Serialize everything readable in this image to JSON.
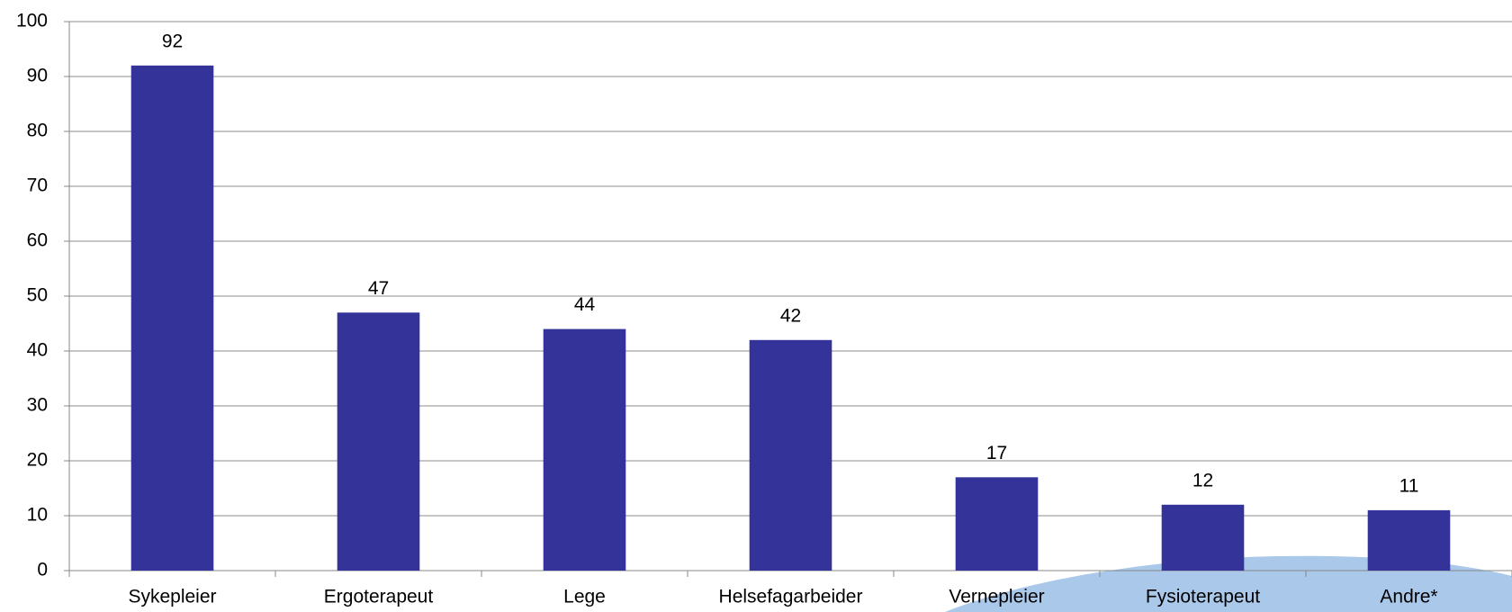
{
  "chart_data": {
    "type": "bar",
    "categories": [
      "Sykepleier",
      "Ergoterapeut",
      "Lege",
      "Helsefagarbeider",
      "Vernepleier",
      "Fysioterapeut",
      "Andre*"
    ],
    "values": [
      92,
      47,
      44,
      42,
      17,
      12,
      11
    ],
    "color": "#333399",
    "ylim": [
      0,
      100
    ],
    "yticks": [
      0,
      10,
      20,
      30,
      40,
      50,
      60,
      70,
      80,
      90,
      100
    ],
    "grid": true
  }
}
